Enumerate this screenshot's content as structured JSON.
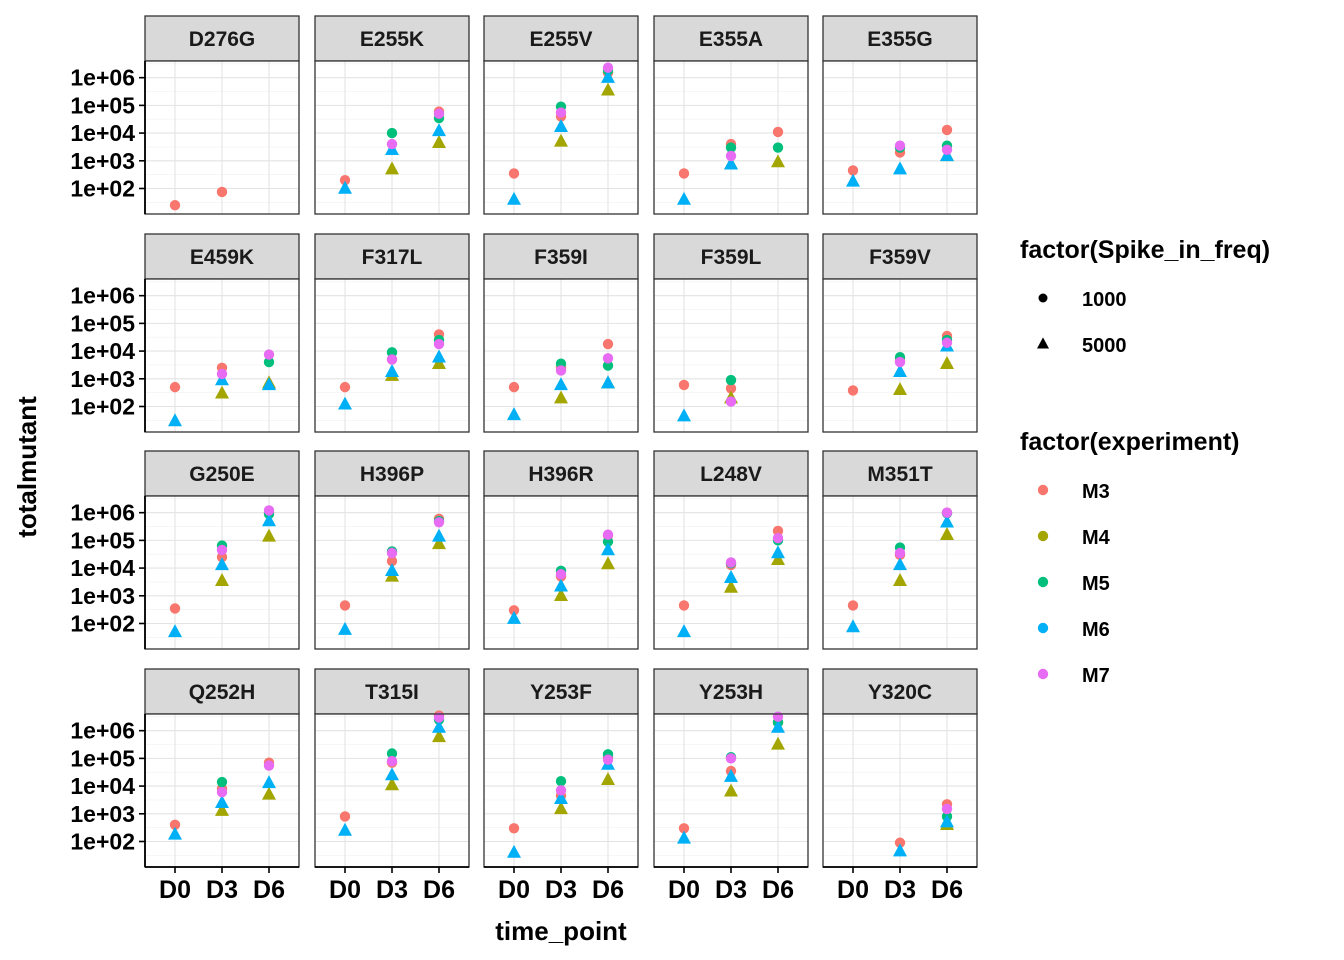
{
  "chart_data": {
    "type": "scatter",
    "facet_rows": 4,
    "facet_cols": 5,
    "facets": [
      "D276G",
      "E255K",
      "E255V",
      "E355A",
      "E355G",
      "E459K",
      "F317L",
      "F359I",
      "F359L",
      "F359V",
      "G250E",
      "H396P",
      "H396R",
      "L248V",
      "M351T",
      "Q252H",
      "T315I",
      "Y253F",
      "Y253H",
      "Y320C"
    ],
    "x_categories": [
      "D0",
      "D3",
      "D6"
    ],
    "xlabel": "time_point",
    "ylabel": "totalmutant",
    "y_scale": "log10",
    "y_ticks": [
      100,
      1000,
      10000,
      100000,
      1000000
    ],
    "y_tick_labels": [
      "1e+02",
      "1e+03",
      "1e+04",
      "1e+05",
      "1e+06"
    ],
    "ylim": [
      12,
      4000000
    ],
    "grid": true,
    "legend_position": "right",
    "legends": {
      "shape": {
        "title": "factor(Spike_in_freq)",
        "items": [
          {
            "label": "1000",
            "shape": "circle"
          },
          {
            "label": "5000",
            "shape": "triangle"
          }
        ]
      },
      "color": {
        "title": "factor(experiment)",
        "items": [
          {
            "label": "M3",
            "color": "#F8766D"
          },
          {
            "label": "M4",
            "color": "#A3A500"
          },
          {
            "label": "M5",
            "color": "#00BF7D"
          },
          {
            "label": "M6",
            "color": "#00B0F6"
          },
          {
            "label": "M7",
            "color": "#E76BF3"
          }
        ]
      }
    },
    "points": {
      "D276G": [
        [
          "D0",
          "M3",
          1000,
          25
        ],
        [
          "D3",
          "M3",
          1000,
          75
        ]
      ],
      "E255K": [
        [
          "D0",
          "M3",
          1000,
          200
        ],
        [
          "D0",
          "M6",
          5000,
          100
        ],
        [
          "D3",
          "M4",
          5000,
          500
        ],
        [
          "D3",
          "M5",
          1000,
          10000
        ],
        [
          "D3",
          "M6",
          5000,
          2500
        ],
        [
          "D3",
          "M7",
          1000,
          4000
        ],
        [
          "D6",
          "M3",
          1000,
          60000
        ],
        [
          "D6",
          "M4",
          5000,
          4500
        ],
        [
          "D6",
          "M5",
          1000,
          35000
        ],
        [
          "D6",
          "M6",
          5000,
          12000
        ],
        [
          "D6",
          "M7",
          1000,
          50000
        ]
      ],
      "E255V": [
        [
          "D0",
          "M3",
          1000,
          350
        ],
        [
          "D0",
          "M6",
          5000,
          40
        ],
        [
          "D3",
          "M3",
          1000,
          40000
        ],
        [
          "D3",
          "M4",
          5000,
          5000
        ],
        [
          "D3",
          "M5",
          1000,
          90000
        ],
        [
          "D3",
          "M6",
          5000,
          17000
        ],
        [
          "D3",
          "M7",
          1000,
          55000
        ],
        [
          "D6",
          "M3",
          1000,
          1500000
        ],
        [
          "D6",
          "M4",
          5000,
          350000
        ],
        [
          "D6",
          "M5",
          1000,
          1800000
        ],
        [
          "D6",
          "M6",
          5000,
          1000000
        ],
        [
          "D6",
          "M7",
          1000,
          2300000
        ]
      ],
      "E355A": [
        [
          "D0",
          "M3",
          1000,
          350
        ],
        [
          "D0",
          "M6",
          5000,
          40
        ],
        [
          "D3",
          "M3",
          1000,
          4000
        ],
        [
          "D3",
          "M4",
          5000,
          750
        ],
        [
          "D3",
          "M5",
          1000,
          3000
        ],
        [
          "D3",
          "M6",
          5000,
          750
        ],
        [
          "D3",
          "M7",
          1000,
          1500
        ],
        [
          "D6",
          "M3",
          1000,
          11000
        ],
        [
          "D6",
          "M4",
          5000,
          900
        ],
        [
          "D6",
          "M5",
          1000,
          3000
        ]
      ],
      "E355G": [
        [
          "D0",
          "M3",
          1000,
          450
        ],
        [
          "D0",
          "M6",
          5000,
          180
        ],
        [
          "D3",
          "M3",
          1000,
          2000
        ],
        [
          "D3",
          "M5",
          1000,
          3000
        ],
        [
          "D3",
          "M6",
          5000,
          500
        ],
        [
          "D3",
          "M7",
          1000,
          3500
        ],
        [
          "D6",
          "M3",
          1000,
          13000
        ],
        [
          "D6",
          "M4",
          5000,
          1500
        ],
        [
          "D6",
          "M5",
          1000,
          3500
        ],
        [
          "D6",
          "M6",
          5000,
          1500
        ],
        [
          "D6",
          "M7",
          1000,
          2500
        ]
      ],
      "E459K": [
        [
          "D0",
          "M3",
          1000,
          500
        ],
        [
          "D0",
          "M6",
          5000,
          30
        ],
        [
          "D3",
          "M3",
          1000,
          2500
        ],
        [
          "D3",
          "M4",
          5000,
          300
        ],
        [
          "D3",
          "M6",
          5000,
          900
        ],
        [
          "D3",
          "M7",
          1000,
          1500
        ],
        [
          "D6",
          "M4",
          5000,
          700
        ],
        [
          "D6",
          "M5",
          1000,
          4000
        ],
        [
          "D6",
          "M6",
          5000,
          600
        ],
        [
          "D6",
          "M7",
          1000,
          7500
        ]
      ],
      "F317L": [
        [
          "D0",
          "M3",
          1000,
          500
        ],
        [
          "D0",
          "M6",
          5000,
          120
        ],
        [
          "D3",
          "M3",
          1000,
          5000
        ],
        [
          "D3",
          "M4",
          5000,
          1300
        ],
        [
          "D3",
          "M5",
          1000,
          9000
        ],
        [
          "D3",
          "M6",
          5000,
          1800
        ],
        [
          "D3",
          "M7",
          1000,
          5000
        ],
        [
          "D6",
          "M3",
          1000,
          40000
        ],
        [
          "D6",
          "M4",
          5000,
          3500
        ],
        [
          "D6",
          "M5",
          1000,
          25000
        ],
        [
          "D6",
          "M6",
          5000,
          6000
        ],
        [
          "D6",
          "M7",
          1000,
          18000
        ]
      ],
      "F359I": [
        [
          "D0",
          "M3",
          1000,
          500
        ],
        [
          "D0",
          "M6",
          5000,
          50
        ],
        [
          "D3",
          "M3",
          1000,
          2500
        ],
        [
          "D3",
          "M4",
          5000,
          200
        ],
        [
          "D3",
          "M5",
          1000,
          3500
        ],
        [
          "D3",
          "M6",
          5000,
          600
        ],
        [
          "D3",
          "M7",
          1000,
          2000
        ],
        [
          "D6",
          "M3",
          1000,
          18000
        ],
        [
          "D6",
          "M4",
          5000,
          700
        ],
        [
          "D6",
          "M5",
          1000,
          3000
        ],
        [
          "D6",
          "M6",
          5000,
          700
        ],
        [
          "D6",
          "M7",
          1000,
          5500
        ]
      ],
      "F359L": [
        [
          "D0",
          "M3",
          1000,
          600
        ],
        [
          "D0",
          "M6",
          5000,
          45
        ],
        [
          "D3",
          "M3",
          1000,
          450
        ],
        [
          "D3",
          "M4",
          5000,
          200
        ],
        [
          "D3",
          "M5",
          1000,
          900
        ],
        [
          "D3",
          "M7",
          1000,
          150
        ]
      ],
      "F359V": [
        [
          "D0",
          "M3",
          1000,
          380
        ],
        [
          "D3",
          "M3",
          1000,
          4500
        ],
        [
          "D3",
          "M4",
          5000,
          400
        ],
        [
          "D3",
          "M5",
          1000,
          6000
        ],
        [
          "D3",
          "M6",
          5000,
          1800
        ],
        [
          "D3",
          "M7",
          1000,
          4000
        ],
        [
          "D6",
          "M3",
          1000,
          35000
        ],
        [
          "D6",
          "M4",
          5000,
          3500
        ],
        [
          "D6",
          "M5",
          1000,
          25000
        ],
        [
          "D6",
          "M6",
          5000,
          15000
        ],
        [
          "D6",
          "M7",
          1000,
          20000
        ]
      ],
      "G250E": [
        [
          "D0",
          "M3",
          1000,
          350
        ],
        [
          "D0",
          "M6",
          5000,
          50
        ],
        [
          "D3",
          "M3",
          1000,
          25000
        ],
        [
          "D3",
          "M4",
          5000,
          3500
        ],
        [
          "D3",
          "M5",
          1000,
          65000
        ],
        [
          "D3",
          "M6",
          5000,
          13000
        ],
        [
          "D3",
          "M7",
          1000,
          45000
        ],
        [
          "D6",
          "M3",
          1000,
          1000000
        ],
        [
          "D6",
          "M4",
          5000,
          140000
        ],
        [
          "D6",
          "M5",
          1000,
          900000
        ],
        [
          "D6",
          "M6",
          5000,
          500000
        ],
        [
          "D6",
          "M7",
          1000,
          1200000
        ]
      ],
      "H396P": [
        [
          "D0",
          "M3",
          1000,
          450
        ],
        [
          "D0",
          "M6",
          5000,
          60
        ],
        [
          "D3",
          "M3",
          1000,
          18000
        ],
        [
          "D3",
          "M4",
          5000,
          5000
        ],
        [
          "D3",
          "M5",
          1000,
          40000
        ],
        [
          "D3",
          "M6",
          5000,
          8000
        ],
        [
          "D3",
          "M7",
          1000,
          35000
        ],
        [
          "D6",
          "M3",
          1000,
          600000
        ],
        [
          "D6",
          "M4",
          5000,
          75000
        ],
        [
          "D6",
          "M5",
          1000,
          500000
        ],
        [
          "D6",
          "M6",
          5000,
          140000
        ],
        [
          "D6",
          "M7",
          1000,
          450000
        ]
      ],
      "H396R": [
        [
          "D0",
          "M3",
          1000,
          300
        ],
        [
          "D0",
          "M6",
          5000,
          150
        ],
        [
          "D3",
          "M3",
          1000,
          5000
        ],
        [
          "D3",
          "M4",
          5000,
          1000
        ],
        [
          "D3",
          "M5",
          1000,
          8000
        ],
        [
          "D3",
          "M6",
          5000,
          2200
        ],
        [
          "D3",
          "M7",
          1000,
          6000
        ],
        [
          "D6",
          "M3",
          1000,
          150000
        ],
        [
          "D6",
          "M4",
          5000,
          14000
        ],
        [
          "D6",
          "M5",
          1000,
          90000
        ],
        [
          "D6",
          "M6",
          5000,
          45000
        ],
        [
          "D6",
          "M7",
          1000,
          160000
        ]
      ],
      "L248V": [
        [
          "D0",
          "M3",
          1000,
          450
        ],
        [
          "D0",
          "M6",
          5000,
          50
        ],
        [
          "D3",
          "M3",
          1000,
          13000
        ],
        [
          "D3",
          "M4",
          5000,
          2000
        ],
        [
          "D3",
          "M5",
          1000,
          15000
        ],
        [
          "D3",
          "M6",
          5000,
          4500
        ],
        [
          "D3",
          "M7",
          1000,
          16000
        ],
        [
          "D6",
          "M3",
          1000,
          220000
        ],
        [
          "D6",
          "M4",
          5000,
          20000
        ],
        [
          "D6",
          "M5",
          1000,
          100000
        ],
        [
          "D6",
          "M6",
          5000,
          35000
        ],
        [
          "D6",
          "M7",
          1000,
          120000
        ]
      ],
      "M351T": [
        [
          "D0",
          "M3",
          1000,
          450
        ],
        [
          "D0",
          "M6",
          5000,
          75
        ],
        [
          "D3",
          "M3",
          1000,
          30000
        ],
        [
          "D3",
          "M4",
          5000,
          3500
        ],
        [
          "D3",
          "M5",
          1000,
          55000
        ],
        [
          "D3",
          "M6",
          5000,
          13000
        ],
        [
          "D3",
          "M7",
          1000,
          35000
        ],
        [
          "D6",
          "M3",
          1000,
          1000000
        ],
        [
          "D6",
          "M4",
          5000,
          160000
        ],
        [
          "D6",
          "M5",
          1000,
          950000
        ],
        [
          "D6",
          "M6",
          5000,
          450000
        ],
        [
          "D6",
          "M7",
          1000,
          1000000
        ]
      ],
      "Q252H": [
        [
          "D0",
          "M3",
          1000,
          400
        ],
        [
          "D0",
          "M6",
          5000,
          180
        ],
        [
          "D3",
          "M3",
          1000,
          8000
        ],
        [
          "D3",
          "M4",
          5000,
          1300
        ],
        [
          "D3",
          "M5",
          1000,
          14000
        ],
        [
          "D3",
          "M6",
          5000,
          2500
        ],
        [
          "D3",
          "M7",
          1000,
          6000
        ],
        [
          "D6",
          "M3",
          1000,
          70000
        ],
        [
          "D6",
          "M4",
          5000,
          5000
        ],
        [
          "D6",
          "M6",
          5000,
          13000
        ],
        [
          "D6",
          "M7",
          1000,
          55000
        ]
      ],
      "T315I": [
        [
          "D0",
          "M3",
          1000,
          800
        ],
        [
          "D0",
          "M6",
          5000,
          250
        ],
        [
          "D3",
          "M3",
          1000,
          70000
        ],
        [
          "D3",
          "M4",
          5000,
          11000
        ],
        [
          "D3",
          "M5",
          1000,
          150000
        ],
        [
          "D3",
          "M6",
          5000,
          25000
        ],
        [
          "D3",
          "M7",
          1000,
          80000
        ],
        [
          "D6",
          "M3",
          1000,
          3500000
        ],
        [
          "D6",
          "M4",
          5000,
          600000
        ],
        [
          "D6",
          "M5",
          1000,
          2500000
        ],
        [
          "D6",
          "M6",
          5000,
          1300000
        ],
        [
          "D6",
          "M7",
          1000,
          3000000
        ]
      ],
      "Y253F": [
        [
          "D0",
          "M3",
          1000,
          300
        ],
        [
          "D0",
          "M6",
          5000,
          40
        ],
        [
          "D3",
          "M3",
          1000,
          4500
        ],
        [
          "D3",
          "M4",
          5000,
          1500
        ],
        [
          "D3",
          "M5",
          1000,
          15000
        ],
        [
          "D3",
          "M6",
          5000,
          3500
        ],
        [
          "D3",
          "M7",
          1000,
          7000
        ],
        [
          "D6",
          "M3",
          1000,
          110000
        ],
        [
          "D6",
          "M4",
          5000,
          17000
        ],
        [
          "D6",
          "M5",
          1000,
          140000
        ],
        [
          "D6",
          "M6",
          5000,
          60000
        ],
        [
          "D6",
          "M7",
          1000,
          90000
        ]
      ],
      "Y253H": [
        [
          "D0",
          "M3",
          1000,
          300
        ],
        [
          "D0",
          "M6",
          5000,
          130
        ],
        [
          "D3",
          "M3",
          1000,
          35000
        ],
        [
          "D3",
          "M4",
          5000,
          6500
        ],
        [
          "D3",
          "M5",
          1000,
          110000
        ],
        [
          "D3",
          "M6",
          5000,
          22000
        ],
        [
          "D3",
          "M7",
          1000,
          100000
        ],
        [
          "D6",
          "M3",
          1000,
          2000000
        ],
        [
          "D6",
          "M4",
          5000,
          320000
        ],
        [
          "D6",
          "M5",
          1000,
          2000000
        ],
        [
          "D6",
          "M6",
          5000,
          1300000
        ],
        [
          "D6",
          "M7",
          1000,
          3200000
        ]
      ],
      "Y320C": [
        [
          "D3",
          "M3",
          1000,
          90
        ],
        [
          "D3",
          "M6",
          5000,
          45
        ],
        [
          "D6",
          "M3",
          1000,
          2200
        ],
        [
          "D6",
          "M4",
          5000,
          400
        ],
        [
          "D6",
          "M5",
          1000,
          800
        ],
        [
          "D6",
          "M6",
          5000,
          500
        ],
        [
          "D6",
          "M7",
          1000,
          1500
        ]
      ]
    }
  }
}
